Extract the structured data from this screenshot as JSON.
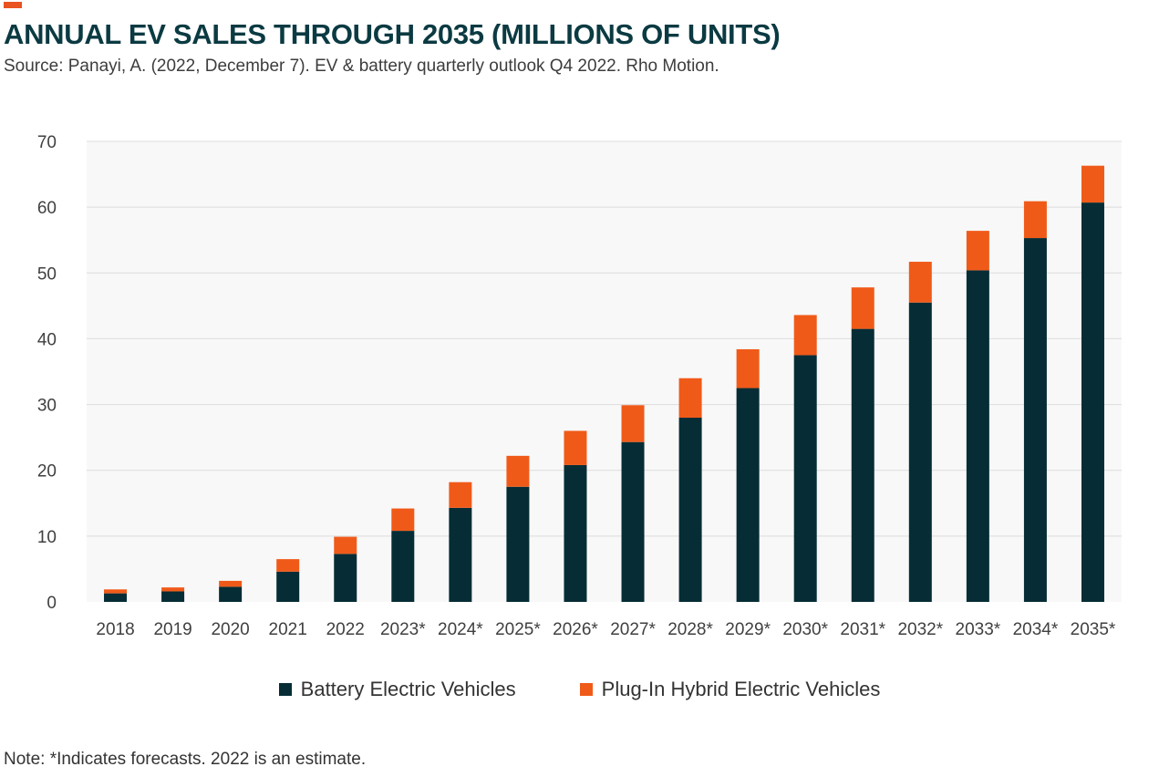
{
  "title": "ANNUAL EV SALES THROUGH 2035 (MILLIONS OF UNITS)",
  "source": "Source: Panayi, A. (2022, December 7). EV & battery quarterly outlook Q4 2022. Rho Motion.",
  "note": "Note: *Indicates forecasts. 2022 is an estimate.",
  "colors": {
    "accent": "#e8531f",
    "bev": "#062d35",
    "phev": "#f05a19",
    "plot_bg": "#f8f8f8",
    "grid": "#dcdcdc"
  },
  "legend": {
    "bev_label": "Battery Electric Vehicles",
    "phev_label": "Plug-In Hybrid Electric Vehicles"
  },
  "chart_data": {
    "type": "bar",
    "stacked": true,
    "title": "ANNUAL EV SALES THROUGH 2035 (MILLIONS OF UNITS)",
    "categories": [
      "2018",
      "2019",
      "2020",
      "2021",
      "2022",
      "2023*",
      "2024*",
      "2025*",
      "2026*",
      "2027*",
      "2028*",
      "2029*",
      "2030*",
      "2031*",
      "2032*",
      "2033*",
      "2034*",
      "2035*"
    ],
    "series": [
      {
        "name": "Battery Electric Vehicles",
        "color": "#062d35",
        "values": [
          1.3,
          1.6,
          2.3,
          4.6,
          7.3,
          10.8,
          14.3,
          17.5,
          20.8,
          24.3,
          28.0,
          32.5,
          37.5,
          41.5,
          45.5,
          50.4,
          55.3,
          60.7
        ]
      },
      {
        "name": "Plug-In Hybrid Electric Vehicles",
        "color": "#f05a19",
        "values": [
          0.6,
          0.6,
          0.9,
          1.9,
          2.6,
          3.4,
          3.9,
          4.7,
          5.2,
          5.6,
          6.0,
          5.9,
          6.1,
          6.3,
          6.2,
          6.0,
          5.6,
          5.6
        ]
      }
    ],
    "ylim": [
      0,
      70
    ],
    "yticks": [
      0,
      10,
      20,
      30,
      40,
      50,
      60,
      70
    ],
    "grid": true,
    "legend_position": "bottom-center"
  }
}
